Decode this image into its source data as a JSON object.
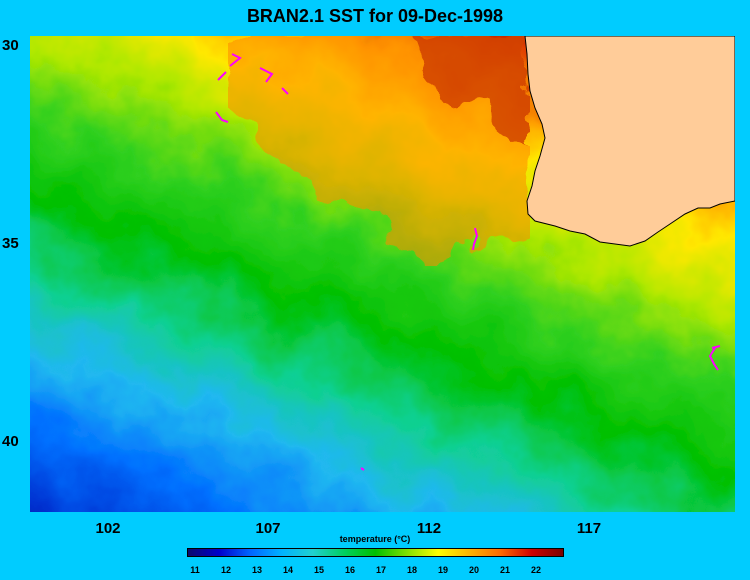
{
  "title": "BRAN2.1 SST for 09-Dec-1998",
  "y_axis": {
    "labels": [
      "30",
      "35",
      "40"
    ],
    "values": [
      30,
      35,
      40
    ]
  },
  "x_axis": {
    "labels": [
      "102",
      "107",
      "112",
      "117"
    ],
    "values": [
      102,
      107,
      112,
      117
    ]
  },
  "colorbar": {
    "label": "temperature (°C)",
    "ticks": [
      "11",
      "12",
      "13",
      "14",
      "15",
      "16",
      "17",
      "18",
      "19",
      "20",
      "21",
      "22"
    ],
    "colors": [
      "#0a0a6e",
      "#0000cc",
      "#0066ff",
      "#00b2ff",
      "#20d0d0",
      "#00d060",
      "#00c000",
      "#7fe000",
      "#ffff00",
      "#ffb400",
      "#ff6a00",
      "#cc0000",
      "#7a0000"
    ]
  },
  "land_color": "#FFCC99",
  "marker_color": "#FF00FF"
}
